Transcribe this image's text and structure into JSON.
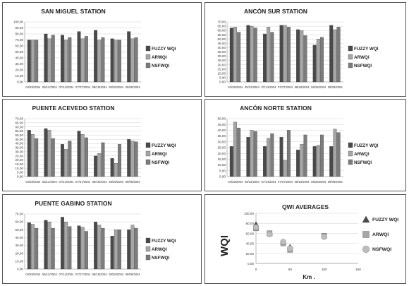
{
  "colors": {
    "fuzzy": "#4a4a4a",
    "arwqi": "#a6a6a6",
    "nsfwqi": "#7c7c7c",
    "grid": "#d0d0d0"
  },
  "charts": [
    {
      "type": "bar",
      "title": "SAN MIGUEL STATION",
      "categories": [
        "04/28/2004",
        "05/12/2004",
        "07/14/2004",
        "07/27/2004",
        "08/18/2004",
        "08/29/2004",
        "09/08/2004"
      ],
      "ylim": [
        0,
        100
      ],
      "ystep": 10,
      "ytick_labels": [
        "0,00",
        "10,00",
        "20,00",
        "30,00",
        "40,00",
        "50,00",
        "60,00",
        "70,00",
        "80,00",
        "90,00",
        "100,00"
      ],
      "series": [
        {
          "name": "FUZZY WQI",
          "values": [
            70,
            80,
            78,
            84,
            86,
            72,
            84
          ]
        },
        {
          "name": "ARWQI",
          "values": [
            70,
            72,
            70,
            72,
            70,
            70,
            72
          ]
        },
        {
          "name": "NSFWQI",
          "values": [
            70,
            78,
            74,
            76,
            74,
            70,
            74
          ]
        }
      ]
    },
    {
      "type": "bar",
      "title": "ANCÓN SUR STATION",
      "categories": [
        "04/28/2004",
        "05/12/2004",
        "07/14/2004",
        "07/27/2004",
        "08/18/2004",
        "08/29/2004",
        "09/08/2004"
      ],
      "ylim": [
        0,
        70
      ],
      "ystep": 5,
      "ytick_labels": [
        "0,00",
        "5,00",
        "10,00",
        "15,00",
        "20,00",
        "25,00",
        "30,00",
        "35,00",
        "40,00",
        "45,00",
        "50,00",
        "55,00",
        "60,00",
        "65,00",
        "70,00"
      ],
      "series": [
        {
          "name": "FUZZY WQI",
          "values": [
            63,
            66,
            56,
            66,
            61,
            43,
            66
          ]
        },
        {
          "name": "ARWQI",
          "values": [
            64,
            65,
            64,
            66,
            60,
            50,
            61
          ]
        },
        {
          "name": "NSFWQI",
          "values": [
            58,
            63,
            58,
            64,
            54,
            52,
            64
          ]
        }
      ]
    },
    {
      "type": "bar",
      "title": "PUENTE ACEVEDO STATION",
      "categories": [
        "04/28/2004",
        "05/12/2004",
        "07/14/2004",
        "07/27/2004",
        "08/18/2004",
        "08/29/2004",
        "09/08/2004"
      ],
      "ylim": [
        0,
        70
      ],
      "ystep": 5,
      "ytick_labels": [
        "0,00",
        "5,00",
        "10,00",
        "15,00",
        "20,00",
        "25,00",
        "30,00",
        "35,00",
        "40,00",
        "45,00",
        "50,00",
        "55,00",
        "60,00",
        "65,00",
        "70,00"
      ],
      "series": [
        {
          "name": "FUZZY WQI",
          "values": [
            56,
            58,
            39,
            55,
            25,
            22,
            45
          ]
        },
        {
          "name": "ARWQI",
          "values": [
            51,
            56,
            33,
            51,
            28,
            16,
            43
          ]
        },
        {
          "name": "NSFWQI",
          "values": [
            46,
            46,
            43,
            47,
            41,
            39,
            42
          ]
        }
      ]
    },
    {
      "type": "bar",
      "title": "ANCÓN NORTE STATION",
      "categories": [
        "04/28/2004",
        "05/12/2004",
        "07/14/2004",
        "07/27/2004",
        "08/18/2004",
        "08/29/2004",
        "09/08/2004"
      ],
      "ylim": [
        0,
        50
      ],
      "ystep": 5,
      "ytick_labels": [
        "0,00",
        "5,00",
        "10,00",
        "15,00",
        "20,00",
        "25,00",
        "30,00",
        "35,00",
        "40,00",
        "45,00",
        "50,00"
      ],
      "series": [
        {
          "name": "FUZZY WQI",
          "values": [
            26,
            34,
            26,
            34,
            23,
            26,
            26
          ]
        },
        {
          "name": "ARWQI",
          "values": [
            47,
            40,
            33,
            14,
            28,
            27,
            41
          ]
        },
        {
          "name": "NSFWQI",
          "values": [
            42,
            39,
            37,
            40,
            36,
            36,
            38
          ]
        }
      ]
    },
    {
      "type": "bar",
      "title": "PUENTE GABINO STATION",
      "categories": [
        "04/28/2004",
        "05/12/2004",
        "07/14/2004",
        "07/27/2004",
        "08/18/2004",
        "08/29/2004",
        "09/08/2004"
      ],
      "ylim": [
        0,
        70
      ],
      "ystep": 10,
      "ytick_labels": [
        "0,00",
        "10,00",
        "20,00",
        "30,00",
        "40,00",
        "50,00",
        "60,00",
        "70,00"
      ],
      "series": [
        {
          "name": "FUZZY WQI",
          "values": [
            59,
            62,
            66,
            55,
            60,
            42,
            50
          ]
        },
        {
          "name": "ARWQI",
          "values": [
            57,
            60,
            60,
            53,
            56,
            50,
            56
          ]
        },
        {
          "name": "NSFWQI",
          "values": [
            52,
            52,
            54,
            48,
            52,
            50,
            52
          ]
        }
      ]
    },
    {
      "type": "scatter",
      "title": "QWI AVERAGES",
      "xlabel": "Km .",
      "ylabel": "WQI",
      "xlim": [
        0,
        150
      ],
      "ylim": [
        0,
        100
      ],
      "xticks": [
        0,
        50,
        100,
        150
      ],
      "yticks": [
        0,
        20,
        40,
        60,
        80,
        100
      ],
      "ytick_labels": [
        "0,00",
        "20,00",
        "40,00",
        "60,00",
        "80,00",
        "100,00"
      ],
      "series": [
        {
          "name": "FUZZY WQI",
          "marker": "triangle",
          "x": [
            0,
            20,
            40,
            50,
            100
          ],
          "y": [
            78,
            60,
            43,
            33,
            55
          ]
        },
        {
          "name": "ARWQI",
          "marker": "square",
          "x": [
            0,
            20,
            40,
            50,
            100
          ],
          "y": [
            70,
            60,
            40,
            27,
            55
          ]
        },
        {
          "name": "NSFWQI",
          "marker": "circle",
          "x": [
            0,
            20,
            40,
            50,
            100
          ],
          "y": [
            72,
            58,
            43,
            30,
            53
          ]
        }
      ]
    }
  ]
}
